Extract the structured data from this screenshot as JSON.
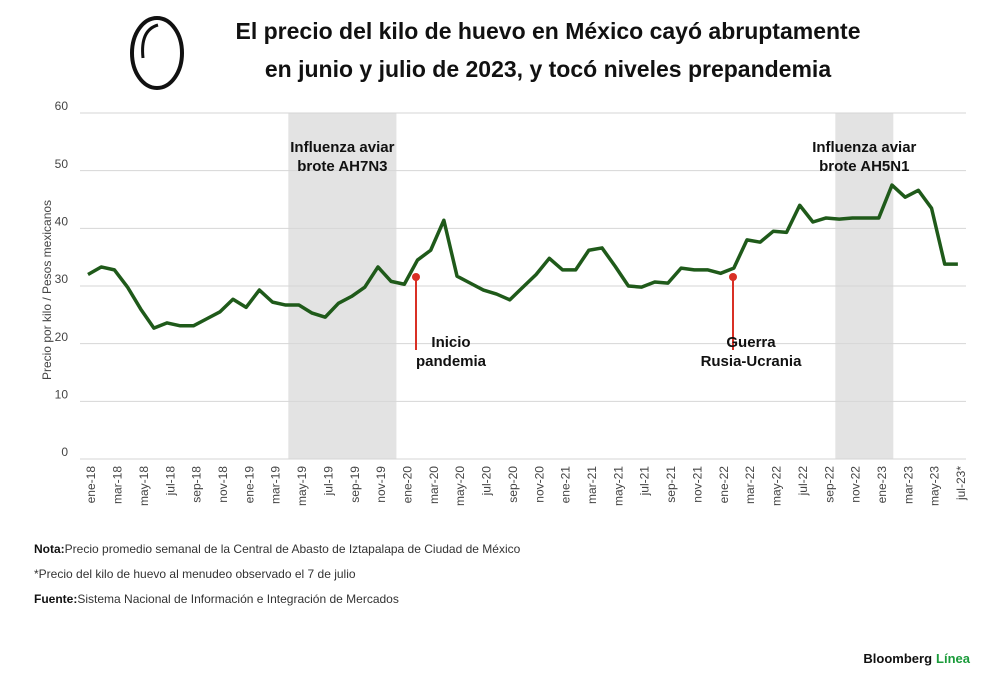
{
  "chart_data": {
    "type": "line",
    "title": [
      "El precio del kilo de huevo en México cayó abruptamente",
      "en junio y julio de 2023, y tocó niveles prepandemia"
    ],
    "y_label": "Precio por kilo / Pesos mexicanos",
    "categories": [
      "ene-18",
      null,
      "mar-18",
      null,
      "may-18",
      null,
      "jul-18",
      null,
      "sep-18",
      null,
      "nov-18",
      null,
      "ene-19",
      null,
      "mar-19",
      null,
      "may-19",
      null,
      "jul-19",
      null,
      "sep-19",
      null,
      "nov-19",
      null,
      "ene-20",
      null,
      "mar-20",
      null,
      "may-20",
      null,
      "jul-20",
      null,
      "sep-20",
      null,
      "nov-20",
      null,
      "ene-21",
      null,
      "mar-21",
      null,
      "may-21",
      null,
      "jul-21",
      null,
      "sep-21",
      null,
      "nov-21",
      null,
      "ene-22",
      null,
      "mar-22",
      null,
      "may-22",
      null,
      "jul-22",
      null,
      "sep-22",
      null,
      "nov-22",
      null,
      "ene-23",
      null,
      "mar-23",
      null,
      "may-23",
      null,
      "jul-23*"
    ],
    "values": [
      32,
      33.3,
      32.8,
      29.8,
      26,
      22.7,
      23.6,
      23.1,
      23.1,
      24.3,
      25.5,
      27.7,
      26.3,
      29.3,
      27.2,
      26.7,
      26.7,
      25.3,
      24.6,
      27,
      28.2,
      29.8,
      33.3,
      30.8,
      30.3,
      34.5,
      36.2,
      41.4,
      31.7,
      30.5,
      29.3,
      28.6,
      27.6,
      29.8,
      32,
      34.8,
      32.8,
      32.8,
      36.2,
      36.6,
      33.4,
      30,
      29.8,
      30.7,
      30.5,
      33.1,
      32.8,
      32.8,
      32.2,
      33.1,
      38,
      37.6,
      39.5,
      39.3,
      44,
      41.1,
      41.8,
      41.6,
      41.8,
      41.8,
      41.8,
      47.5,
      45.4,
      46.6,
      43.5,
      33.8,
      33.8
    ],
    "color": "#1f5a1a",
    "ylim": [
      0,
      60
    ],
    "yticks": [
      0,
      10,
      20,
      30,
      40,
      50,
      60
    ],
    "grid": true,
    "shaded_annotations": [
      {
        "text": [
          "Influenza aviar",
          "brote AH7N3"
        ]
      },
      {
        "text": [
          "Influenza aviar",
          "brote AH5N1"
        ]
      }
    ],
    "event_annotations": [
      {
        "text": [
          "Inicio",
          "pandemia"
        ]
      },
      {
        "text": [
          "Guerra",
          "Rusia-Ucrania"
        ]
      }
    ],
    "notes": [
      {
        "label": "Nota:",
        "text": "Precio promedio semanal de la Central de Abasto de Iztapalapa de Ciudad de México"
      },
      {
        "text": "*Precio del kilo de huevo al menudeo observado el 7 de julio"
      },
      {
        "label": "Fuente:",
        "text": "Sistema Nacional de Información e Integración de Mercados"
      }
    ],
    "brand": [
      "Bloomberg",
      "Línea"
    ]
  }
}
